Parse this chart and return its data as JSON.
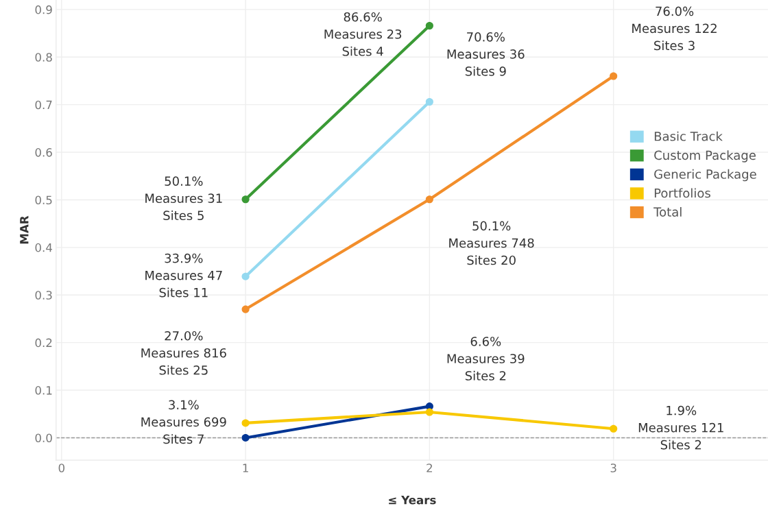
{
  "chart_data": {
    "type": "line",
    "xlabel": "≤ Years",
    "ylabel": "MAR",
    "xlim": [
      -0.03,
      3.84
    ],
    "ylim": [
      -0.047,
      0.92
    ],
    "xticks": [
      0,
      1,
      2,
      3
    ],
    "yticks": [
      {
        "value": 0,
        "label": "0.0"
      },
      0.1,
      0.2,
      0.3,
      0.4,
      0.5,
      0.6,
      0.7,
      0.8,
      0.9
    ],
    "grid": true,
    "legend": "right",
    "marker": "circle",
    "line_style": "solid",
    "ref_lines": [
      {
        "axis": "y",
        "value": 0,
        "color": "#999999",
        "line_style": "dashed"
      }
    ],
    "series": [
      {
        "name": "Basic Track",
        "color": "#94d9f0",
        "x": [
          1,
          2
        ],
        "values": [
          0.339,
          0.706
        ]
      },
      {
        "name": "Custom Package",
        "color": "#3a9a35",
        "x": [
          1,
          2
        ],
        "values": [
          0.501,
          0.866
        ]
      },
      {
        "name": "Generic Package",
        "color": "#003594",
        "x": [
          1,
          2
        ],
        "values": [
          0.0,
          0.066
        ]
      },
      {
        "name": "Portfolios",
        "color": "#f8c800",
        "x": [
          1,
          2,
          3
        ],
        "values": [
          0.031,
          0.054,
          0.019
        ]
      },
      {
        "name": "Total",
        "color": "#f28e2b",
        "x": [
          1,
          2,
          3
        ],
        "values": [
          0.27,
          0.501,
          0.76
        ]
      }
    ],
    "annotations": [
      {
        "text": "86.6%\nMeasures 23\nSites 4",
        "x": 2,
        "y": 0.866
      },
      {
        "text": "70.6%\nMeasures 36\nSites 9",
        "x": 2,
        "y": 0.706
      },
      {
        "text": "76.0%\nMeasures 122\nSites 3",
        "x": 3,
        "y": 0.76
      },
      {
        "text": "50.1%\nMeasures 31\nSites 5",
        "x": 1,
        "y": 0.501
      },
      {
        "text": "50.1%\nMeasures 748\nSites 20",
        "x": 2,
        "y": 0.501
      },
      {
        "text": "33.9%\nMeasures 47\nSites 11",
        "x": 1,
        "y": 0.339
      },
      {
        "text": "27.0%\nMeasures 816\nSites 25",
        "x": 1,
        "y": 0.27
      },
      {
        "text": "6.6%\nMeasures 39\nSites 2",
        "x": 2,
        "y": 0.066
      },
      {
        "text": "3.1%\nMeasures 699\nSites 7",
        "x": 1,
        "y": 0.031
      },
      {
        "text": "1.9%\nMeasures 121\nSites 2",
        "x": 3,
        "y": 0.019
      }
    ]
  }
}
